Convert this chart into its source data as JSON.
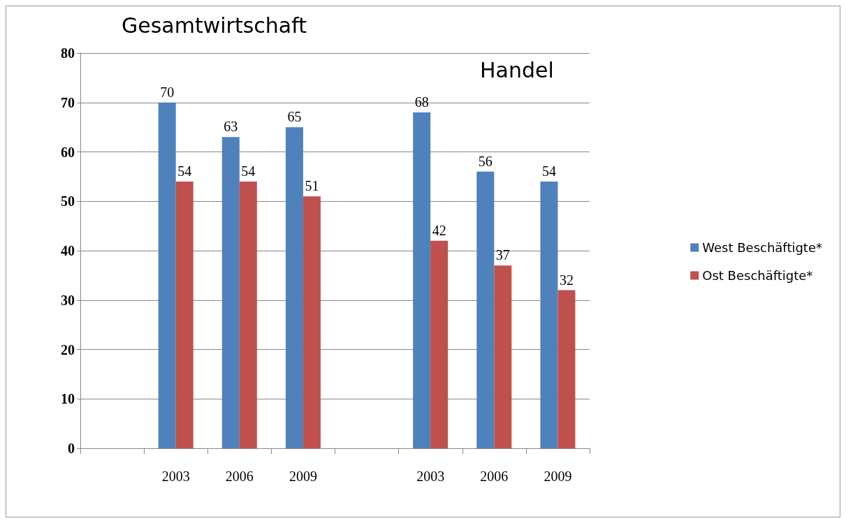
{
  "chart_data": {
    "type": "bar",
    "categories": [
      null,
      "2003",
      "2006",
      "2009",
      null,
      "2003",
      "2006",
      "2009"
    ],
    "series": [
      {
        "name": "West Beschäftigte*",
        "color": "#4f81bd",
        "values": [
          null,
          70,
          63,
          65,
          null,
          68,
          56,
          54
        ]
      },
      {
        "name": "Ost Beschäftigte*",
        "color": "#c0504d",
        "values": [
          null,
          54,
          54,
          51,
          null,
          42,
          37,
          32
        ]
      }
    ],
    "annotations": [
      "Gesamtwirtschaft",
      "Handel"
    ],
    "ylim": [
      0,
      80
    ],
    "yticks": [
      0,
      10,
      20,
      30,
      40,
      50,
      60,
      70,
      80
    ],
    "grid": "y",
    "legend": "right",
    "data_labels": true
  }
}
